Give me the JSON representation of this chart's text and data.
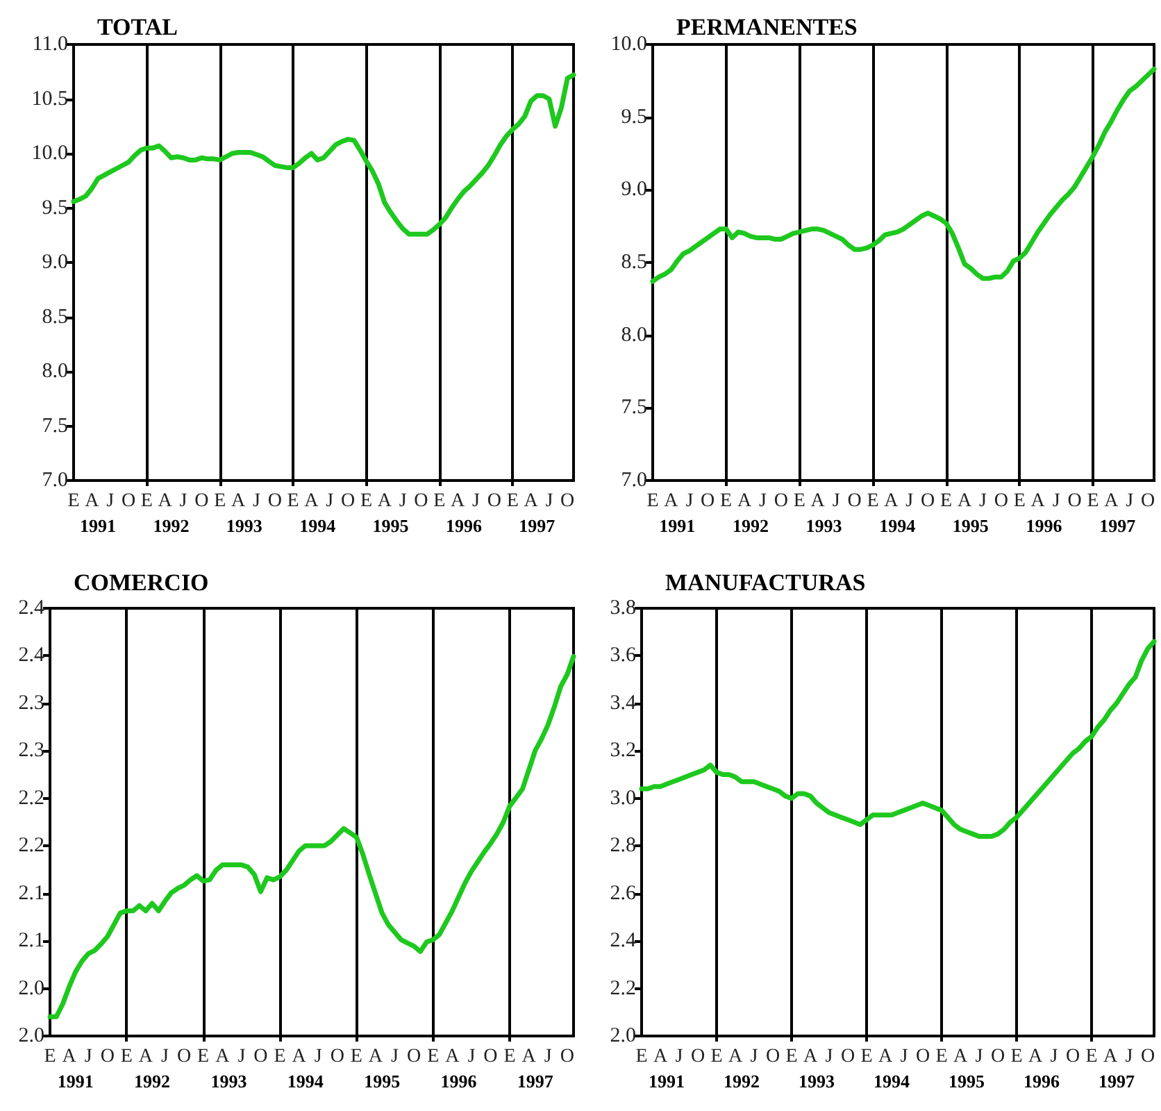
{
  "chart_data": [
    {
      "type": "line",
      "title": "TOTAL",
      "color": "#1ec81e",
      "grid": "x",
      "categories": [
        "E",
        null,
        null,
        "A",
        null,
        null,
        "J",
        null,
        null,
        "O",
        null,
        null,
        "E",
        null,
        null,
        "A",
        null,
        null,
        "J",
        null,
        null,
        "O",
        null,
        null,
        "E",
        null,
        null,
        "A",
        null,
        null,
        "J",
        null,
        null,
        "O",
        null,
        null,
        "E",
        null,
        null,
        "A",
        null,
        null,
        "J",
        null,
        null,
        "O",
        null,
        null,
        "E",
        null,
        null,
        "A",
        null,
        null,
        "J",
        null,
        null,
        "O",
        null,
        null,
        "E",
        null,
        null,
        "A",
        null,
        null,
        "J",
        null,
        null,
        "O",
        null,
        null,
        "E",
        null,
        null,
        "A",
        null,
        null,
        "J",
        null,
        null,
        "O",
        null
      ],
      "values": [
        9.56,
        9.58,
        9.61,
        9.68,
        9.77,
        9.8,
        9.83,
        9.86,
        9.89,
        9.92,
        9.98,
        10.03,
        10.05,
        10.05,
        10.07,
        10.02,
        9.96,
        9.97,
        9.96,
        9.94,
        9.94,
        9.96,
        9.95,
        9.95,
        9.94,
        9.97,
        10.0,
        10.01,
        10.01,
        10.01,
        9.99,
        9.97,
        9.93,
        9.89,
        9.88,
        9.87,
        9.87,
        9.91,
        9.96,
        10.0,
        9.94,
        9.96,
        10.02,
        10.08,
        10.11,
        10.13,
        10.12,
        10.03,
        9.93,
        9.84,
        9.72,
        9.55,
        9.46,
        9.38,
        9.31,
        9.26,
        9.26,
        9.26,
        9.26,
        9.3,
        9.35,
        9.41,
        9.5,
        9.58,
        9.65,
        9.7,
        9.76,
        9.82,
        9.89,
        9.98,
        10.08,
        10.16,
        10.22,
        10.27,
        10.34,
        10.48,
        10.53,
        10.53,
        10.5,
        10.25,
        10.42,
        10.69,
        10.72
      ],
      "ylim": [
        7.0,
        11.0
      ],
      "yticks": [
        {
          "value": 7,
          "label": "7.0"
        },
        {
          "value": 7.5,
          "label": "7.5"
        },
        {
          "value": 8,
          "label": "8.0"
        },
        {
          "value": 8.5,
          "label": "8.5"
        },
        {
          "value": 9,
          "label": "9.0"
        },
        {
          "value": 9.5,
          "label": "9.5"
        },
        {
          "value": 10,
          "label": "10.0"
        },
        {
          "value": 10.5,
          "label": "10.5"
        },
        {
          "value": 11,
          "label": "11.0"
        }
      ],
      "annotations": [
        "1991",
        "1992",
        "1993",
        "1994",
        "1995",
        "1996",
        "1997"
      ]
    },
    {
      "type": "line",
      "title": "PERMANENTES",
      "color": "#1ec81e",
      "grid": "x",
      "categories": [
        "E",
        null,
        null,
        "A",
        null,
        null,
        "J",
        null,
        null,
        "O",
        null,
        null,
        "E",
        null,
        null,
        "A",
        null,
        null,
        "J",
        null,
        null,
        "O",
        null,
        null,
        "E",
        null,
        null,
        "A",
        null,
        null,
        "J",
        null,
        null,
        "O",
        null,
        null,
        "E",
        null,
        null,
        "A",
        null,
        null,
        "J",
        null,
        null,
        "O",
        null,
        null,
        "E",
        null,
        null,
        "A",
        null,
        null,
        "J",
        null,
        null,
        "O",
        null,
        null,
        "E",
        null,
        null,
        "A",
        null,
        null,
        "J",
        null,
        null,
        "O",
        null,
        null,
        "E",
        null,
        null,
        "A",
        null,
        null,
        "J",
        null,
        null,
        "O",
        null
      ],
      "values": [
        8.37,
        8.4,
        8.42,
        8.45,
        8.51,
        8.56,
        8.58,
        8.61,
        8.64,
        8.67,
        8.7,
        8.73,
        8.73,
        8.67,
        8.71,
        8.7,
        8.68,
        8.67,
        8.67,
        8.67,
        8.66,
        8.66,
        8.68,
        8.7,
        8.71,
        8.72,
        8.73,
        8.73,
        8.72,
        8.7,
        8.68,
        8.66,
        8.62,
        8.59,
        8.59,
        8.6,
        8.62,
        8.65,
        8.69,
        8.7,
        8.71,
        8.73,
        8.76,
        8.79,
        8.82,
        8.84,
        8.82,
        8.8,
        8.77,
        8.7,
        8.6,
        8.49,
        8.46,
        8.42,
        8.39,
        8.39,
        8.4,
        8.4,
        8.44,
        8.51,
        8.53,
        8.57,
        8.64,
        8.71,
        8.77,
        8.83,
        8.88,
        8.93,
        8.97,
        9.02,
        9.09,
        9.16,
        9.23,
        9.31,
        9.4,
        9.47,
        9.55,
        9.62,
        9.68,
        9.71,
        9.75,
        9.79,
        9.83
      ],
      "ylim": [
        7.0,
        10.0
      ],
      "yticks": [
        {
          "value": 7,
          "label": "7.0"
        },
        {
          "value": 7.5,
          "label": "7.5"
        },
        {
          "value": 8,
          "label": "8.0"
        },
        {
          "value": 8.5,
          "label": "8.5"
        },
        {
          "value": 9,
          "label": "9.0"
        },
        {
          "value": 9.5,
          "label": "9.5"
        },
        {
          "value": 10,
          "label": "10.0"
        }
      ],
      "annotations": [
        "1991",
        "1992",
        "1993",
        "1994",
        "1995",
        "1996",
        "1997"
      ]
    },
    {
      "type": "line",
      "title": "COMERCIO",
      "color": "#1ec81e",
      "grid": "x",
      "categories": [
        "E",
        null,
        null,
        "A",
        null,
        null,
        "J",
        null,
        null,
        "O",
        null,
        null,
        "E",
        null,
        null,
        "A",
        null,
        null,
        "J",
        null,
        null,
        "O",
        null,
        null,
        "E",
        null,
        null,
        "A",
        null,
        null,
        "J",
        null,
        null,
        "O",
        null,
        null,
        "E",
        null,
        null,
        "A",
        null,
        null,
        "J",
        null,
        null,
        "O",
        null,
        null,
        "E",
        null,
        null,
        "A",
        null,
        null,
        "J",
        null,
        null,
        "O",
        null,
        null,
        "E",
        null,
        null,
        "A",
        null,
        null,
        "J",
        null,
        null,
        "O",
        null,
        null,
        "E",
        null,
        null,
        "A",
        null,
        null,
        "J",
        null,
        null,
        "O",
        null
      ],
      "values": [
        2.018,
        2.018,
        2.03,
        2.046,
        2.06,
        2.07,
        2.077,
        2.08,
        2.086,
        2.093,
        2.104,
        2.115,
        2.117,
        2.117,
        2.122,
        2.117,
        2.124,
        2.117,
        2.126,
        2.134,
        2.138,
        2.141,
        2.146,
        2.15,
        2.145,
        2.146,
        2.155,
        2.16,
        2.16,
        2.16,
        2.16,
        2.158,
        2.151,
        2.135,
        2.148,
        2.146,
        2.149,
        2.155,
        2.164,
        2.173,
        2.178,
        2.178,
        2.178,
        2.178,
        2.182,
        2.188,
        2.194,
        2.19,
        2.186,
        2.17,
        2.151,
        2.133,
        2.115,
        2.104,
        2.097,
        2.09,
        2.087,
        2.084,
        2.079,
        2.088,
        2.09,
        2.095,
        2.106,
        2.117,
        2.13,
        2.143,
        2.154,
        2.163,
        2.172,
        2.18,
        2.189,
        2.2,
        2.215,
        2.223,
        2.231,
        2.249,
        2.267,
        2.278,
        2.291,
        2.308,
        2.327,
        2.338,
        2.355
      ],
      "ylim": [
        2.0,
        2.4
      ],
      "yticks": [
        {
          "value": 2.0,
          "label": "2.0"
        },
        {
          "value": 2.0444,
          "label": "2.0"
        },
        {
          "value": 2.0889,
          "label": "2.1"
        },
        {
          "value": 2.1333,
          "label": "2.1"
        },
        {
          "value": 2.1778,
          "label": "2.2"
        },
        {
          "value": 2.2222,
          "label": "2.2"
        },
        {
          "value": 2.2667,
          "label": "2.3"
        },
        {
          "value": 2.3111,
          "label": "2.3"
        },
        {
          "value": 2.3556,
          "label": "2.4"
        },
        {
          "value": 2.4,
          "label": "2.4"
        }
      ],
      "annotations": [
        "1991",
        "1992",
        "1993",
        "1994",
        "1995",
        "1996",
        "1997"
      ]
    },
    {
      "type": "line",
      "title": "MANUFACTURAS",
      "color": "#1ec81e",
      "grid": "x",
      "categories": [
        "E",
        null,
        null,
        "A",
        null,
        null,
        "J",
        null,
        null,
        "O",
        null,
        null,
        "E",
        null,
        null,
        "A",
        null,
        null,
        "J",
        null,
        null,
        "O",
        null,
        null,
        "E",
        null,
        null,
        "A",
        null,
        null,
        "J",
        null,
        null,
        "O",
        null,
        null,
        "E",
        null,
        null,
        "A",
        null,
        null,
        "J",
        null,
        null,
        "O",
        null,
        null,
        "E",
        null,
        null,
        "A",
        null,
        null,
        "J",
        null,
        null,
        "O",
        null,
        null,
        "E",
        null,
        null,
        "A",
        null,
        null,
        "J",
        null,
        null,
        "O",
        null,
        null,
        "E",
        null,
        null,
        "A",
        null,
        null,
        "J",
        null,
        null,
        "O",
        null
      ],
      "values": [
        3.04,
        3.04,
        3.05,
        3.05,
        3.06,
        3.07,
        3.08,
        3.09,
        3.1,
        3.11,
        3.12,
        3.14,
        3.11,
        3.1,
        3.1,
        3.09,
        3.07,
        3.07,
        3.07,
        3.06,
        3.05,
        3.04,
        3.03,
        3.01,
        3.0,
        3.02,
        3.02,
        3.01,
        2.98,
        2.96,
        2.94,
        2.93,
        2.92,
        2.91,
        2.9,
        2.89,
        2.91,
        2.93,
        2.93,
        2.93,
        2.93,
        2.94,
        2.95,
        2.96,
        2.97,
        2.98,
        2.97,
        2.96,
        2.95,
        2.92,
        2.89,
        2.87,
        2.86,
        2.85,
        2.84,
        2.84,
        2.84,
        2.85,
        2.87,
        2.9,
        2.92,
        2.95,
        2.98,
        3.01,
        3.04,
        3.07,
        3.1,
        3.13,
        3.16,
        3.19,
        3.21,
        3.24,
        3.26,
        3.3,
        3.33,
        3.37,
        3.4,
        3.44,
        3.48,
        3.51,
        3.58,
        3.63,
        3.66
      ],
      "ylim": [
        2.0,
        3.8
      ],
      "yticks": [
        {
          "value": 2.0,
          "label": "2.0"
        },
        {
          "value": 2.2,
          "label": "2.2"
        },
        {
          "value": 2.4,
          "label": "2.4"
        },
        {
          "value": 2.6,
          "label": "2.6"
        },
        {
          "value": 2.8,
          "label": "2.8"
        },
        {
          "value": 3.0,
          "label": "3.0"
        },
        {
          "value": 3.2,
          "label": "3.2"
        },
        {
          "value": 3.4,
          "label": "3.4"
        },
        {
          "value": 3.6,
          "label": "3.6"
        },
        {
          "value": 3.8,
          "label": "3.8"
        }
      ],
      "annotations": [
        "1991",
        "1992",
        "1993",
        "1994",
        "1995",
        "1996",
        "1997"
      ]
    }
  ]
}
